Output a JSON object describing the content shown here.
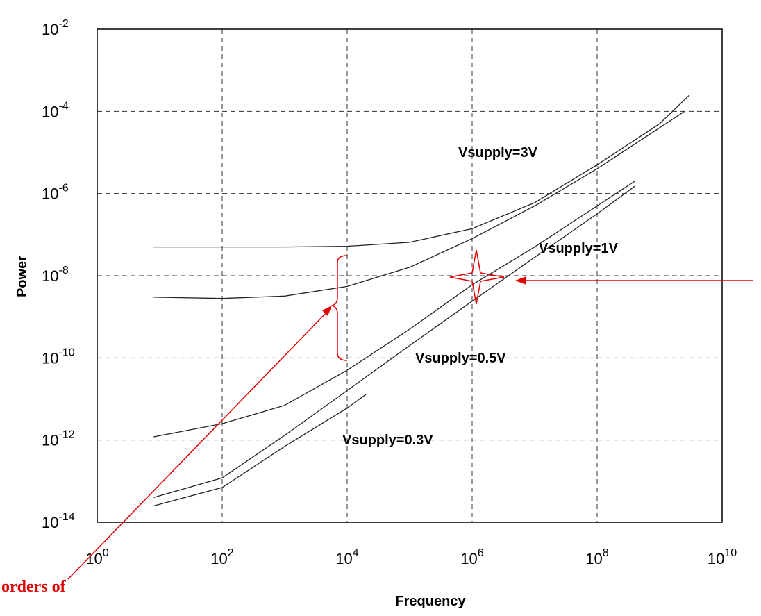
{
  "chart_data": {
    "type": "line",
    "xlabel": "Frequency",
    "ylabel": "Power",
    "x_scale": "log",
    "y_scale": "log",
    "xlim": [
      1,
      10000000000
    ],
    "ylim": [
      1e-14,
      0.01
    ],
    "grid": true,
    "x_ticks": [
      {
        "base": "10",
        "exp": "0",
        "value": 1
      },
      {
        "base": "10",
        "exp": "2",
        "value": 100
      },
      {
        "base": "10",
        "exp": "4",
        "value": 10000
      },
      {
        "base": "10",
        "exp": "6",
        "value": 1000000
      },
      {
        "base": "10",
        "exp": "8",
        "value": 100000000
      },
      {
        "base": "10",
        "exp": "10",
        "value": 10000000000
      }
    ],
    "y_ticks": [
      {
        "base": "10",
        "exp": "-2",
        "value": 0.01
      },
      {
        "base": "10",
        "exp": "-4",
        "value": 0.0001
      },
      {
        "base": "10",
        "exp": "-6",
        "value": 1e-06
      },
      {
        "base": "10",
        "exp": "-8",
        "value": 1e-08
      },
      {
        "base": "10",
        "exp": "-10",
        "value": 1e-10
      },
      {
        "base": "10",
        "exp": "-12",
        "value": 1e-12
      },
      {
        "base": "10",
        "exp": "-14",
        "value": 1e-14
      }
    ],
    "series": [
      {
        "name": "Vsupply=3V",
        "x": [
          8,
          100,
          1000,
          10000,
          100000,
          1000000,
          10000000,
          100000000,
          1000000000,
          3000000000
        ],
        "y": [
          5e-08,
          5e-08,
          5e-08,
          5.2e-08,
          6.5e-08,
          1.4e-07,
          6e-07,
          5e-06,
          5e-05,
          0.00025
        ]
      },
      {
        "name": "Vsupply=1V",
        "x": [
          8,
          100,
          1000,
          10000,
          100000,
          1000000,
          10000000,
          100000000,
          1000000000,
          2500000000
        ],
        "y": [
          3e-09,
          2.8e-09,
          3.2e-09,
          5.5e-09,
          1.6e-08,
          8e-08,
          5e-07,
          4e-06,
          4e-05,
          0.0001
        ]
      },
      {
        "name": "Vsupply=0.5V",
        "x": [
          8,
          100,
          1000,
          10000,
          100000,
          1000000,
          10000000,
          100000000,
          400000000
        ],
        "y": [
          1.2e-12,
          2.5e-12,
          7e-12,
          5e-11,
          5e-10,
          6e-09,
          5e-08,
          5e-07,
          2e-06
        ]
      },
      {
        "name": "Vsupply=0.5V",
        "x": [
          8,
          100,
          1000,
          10000,
          100000,
          1000000,
          10000000,
          100000000,
          400000000
        ],
        "y": [
          4e-14,
          1.2e-13,
          1.3e-12,
          1.6e-11,
          2e-10,
          2.4e-09,
          2.8e-08,
          3.2e-07,
          1.5e-06
        ]
      },
      {
        "name": "Vsupply=0.3V",
        "x": [
          8,
          100,
          1000,
          10000,
          20000
        ],
        "y": [
          2.5e-14,
          7e-14,
          7e-13,
          6e-12,
          1.3e-11
        ]
      }
    ],
    "labels": {
      "v3": "Vsupply=3V",
      "v1": "Vsupply=1V",
      "v05": "Vsupply=0.5V",
      "v03": "Vsupply=0.3V"
    },
    "annotation": {
      "text": "orders of",
      "color": "#e00000"
    }
  }
}
